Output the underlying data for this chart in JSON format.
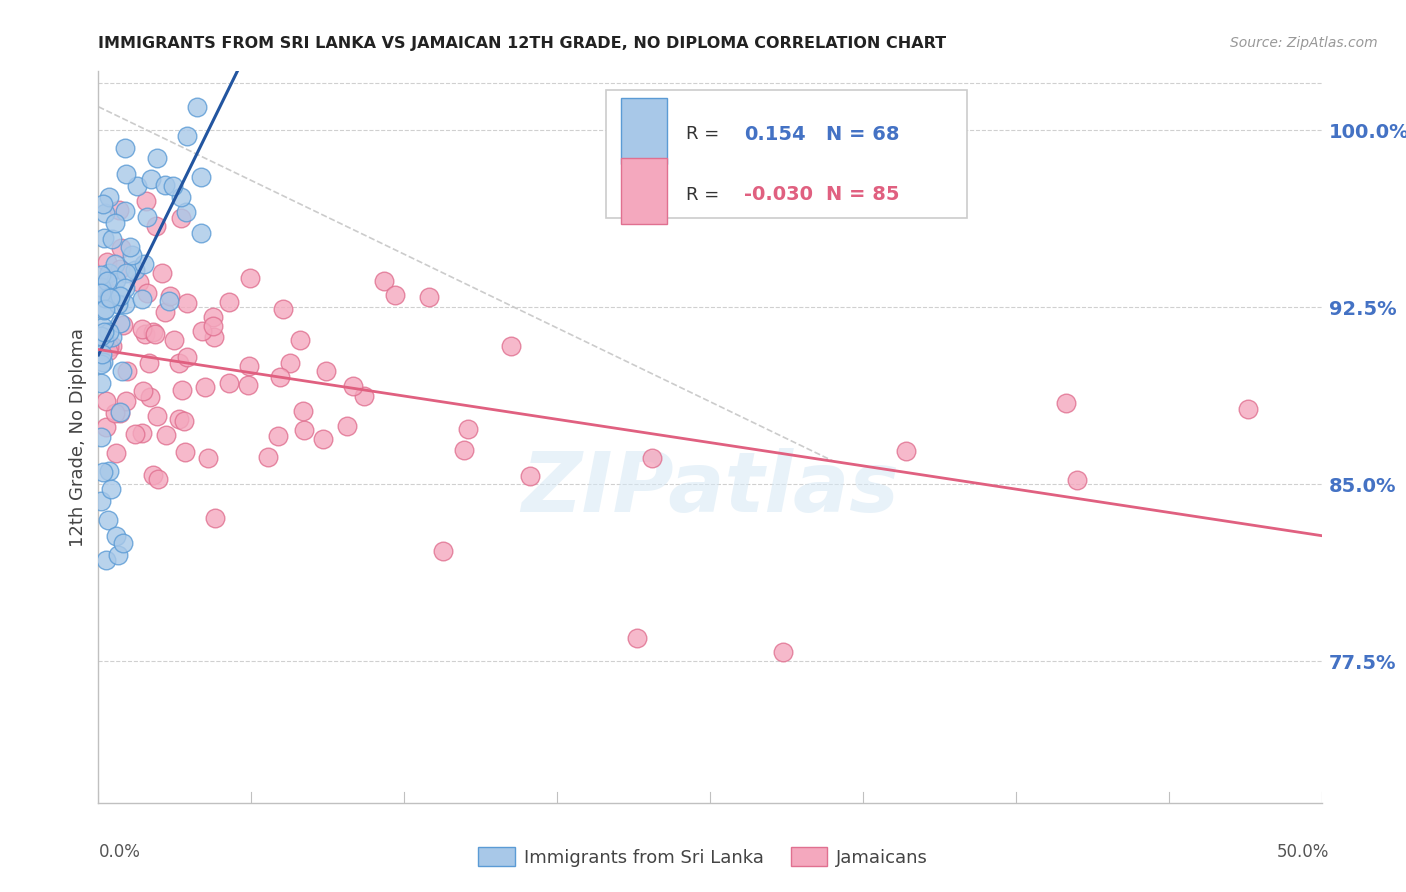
{
  "title": "IMMIGRANTS FROM SRI LANKA VS JAMAICAN 12TH GRADE, NO DIPLOMA CORRELATION CHART",
  "source": "Source: ZipAtlas.com",
  "ylabel": "12th Grade, No Diploma",
  "ylabel_tick_values": [
    1.0,
    0.925,
    0.85,
    0.775
  ],
  "xmin": 0.0,
  "xmax": 0.5,
  "ymin": 0.715,
  "ymax": 1.025,
  "sri_lanka_R": 0.154,
  "sri_lanka_N": 68,
  "jamaican_R": -0.03,
  "jamaican_N": 85,
  "sri_lanka_color": "#a8c8e8",
  "sri_lanka_edge_color": "#5b9bd5",
  "jamaican_color": "#f4a8be",
  "jamaican_edge_color": "#e07090",
  "trend_sri_lanka_color": "#2255a0",
  "trend_jamaican_color": "#e06080",
  "watermark": "ZIPatlas",
  "legend_R_color": "#4472c4",
  "legend_Rj_color": "#e06080"
}
